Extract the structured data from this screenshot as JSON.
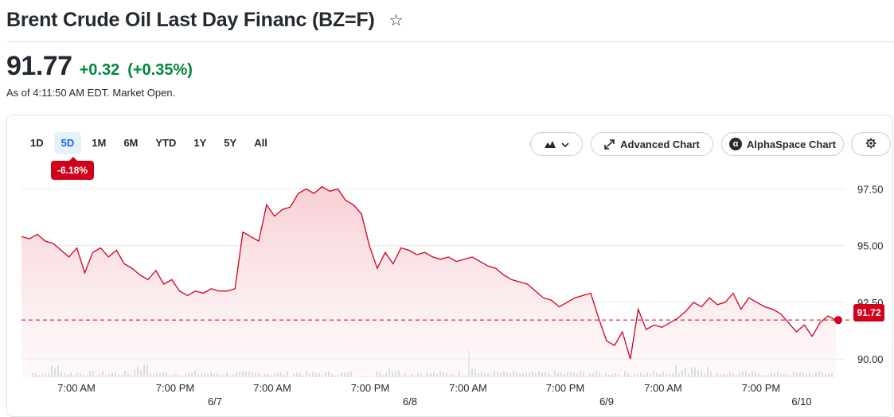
{
  "header": {
    "title": "Brent Crude Oil Last Day Financ (BZ=F)",
    "price": "91.77",
    "change": "+0.32",
    "change_pct": "(+0.35%)",
    "as_of": "As of 4:11:50 AM EDT. Market Open."
  },
  "toolbar": {
    "ranges": [
      "1D",
      "5D",
      "1M",
      "6M",
      "YTD",
      "1Y",
      "5Y",
      "All"
    ],
    "active_range": "5D",
    "range_change": "-6.18%",
    "advanced_chart_label": "Advanced Chart",
    "alphaspace_label": "AlphaSpace Chart"
  },
  "colors": {
    "line": "#d0021b",
    "fill": "#f6c9cf",
    "positive": "#00873c",
    "active_range": "#0f69ff",
    "grid": "#e6e9ec"
  },
  "chart_data": {
    "type": "area",
    "title": "",
    "xlabel": "",
    "ylabel": "",
    "ylim": [
      89.2,
      97.9
    ],
    "y_ticks": [
      "97.50",
      "95.00",
      "92.50",
      "90.00"
    ],
    "x_tick_labels": [
      "7:00 AM",
      "7:00 PM",
      "7:00 AM",
      "7:00 PM",
      "7:00 AM",
      "7:00 PM",
      "7:00 AM",
      "7:00 PM"
    ],
    "day_labels": [
      "6/7",
      "6/8",
      "6/9",
      "6/10"
    ],
    "reference_price": 91.72,
    "last_price_label": "91.72",
    "grid": true,
    "series": [
      {
        "values": [
          95.4,
          95.3,
          95.5,
          95.2,
          95.1,
          94.8,
          94.5,
          94.9,
          93.8,
          94.7,
          94.9,
          94.5,
          94.8,
          94.2,
          94.0,
          93.7,
          93.5,
          93.9,
          93.3,
          93.5,
          93.0,
          92.8,
          93.0,
          92.9,
          93.1,
          93.0,
          93.0,
          93.1,
          95.6,
          95.4,
          95.2,
          96.8,
          96.3,
          96.6,
          96.7,
          97.3,
          97.5,
          97.3,
          97.6,
          97.4,
          97.5,
          97.0,
          96.8,
          96.4,
          95.0,
          94.0,
          94.7,
          94.2,
          94.9,
          94.8,
          94.6,
          94.7,
          94.5,
          94.4,
          94.5,
          94.3,
          94.4,
          94.5,
          94.3,
          94.1,
          94.0,
          93.7,
          93.5,
          93.4,
          93.3,
          93.0,
          92.7,
          92.6,
          92.3,
          92.5,
          92.7,
          92.8,
          92.9,
          91.8,
          90.8,
          90.6,
          91.2,
          90.0,
          92.2,
          91.3,
          91.5,
          91.4,
          91.6,
          91.8,
          92.1,
          92.5,
          92.3,
          92.7,
          92.4,
          92.5,
          92.9,
          92.2,
          92.7,
          92.5,
          92.3,
          92.2,
          92.0,
          91.6,
          91.2,
          91.5,
          91.0,
          91.6,
          91.9,
          91.72
        ]
      }
    ]
  }
}
